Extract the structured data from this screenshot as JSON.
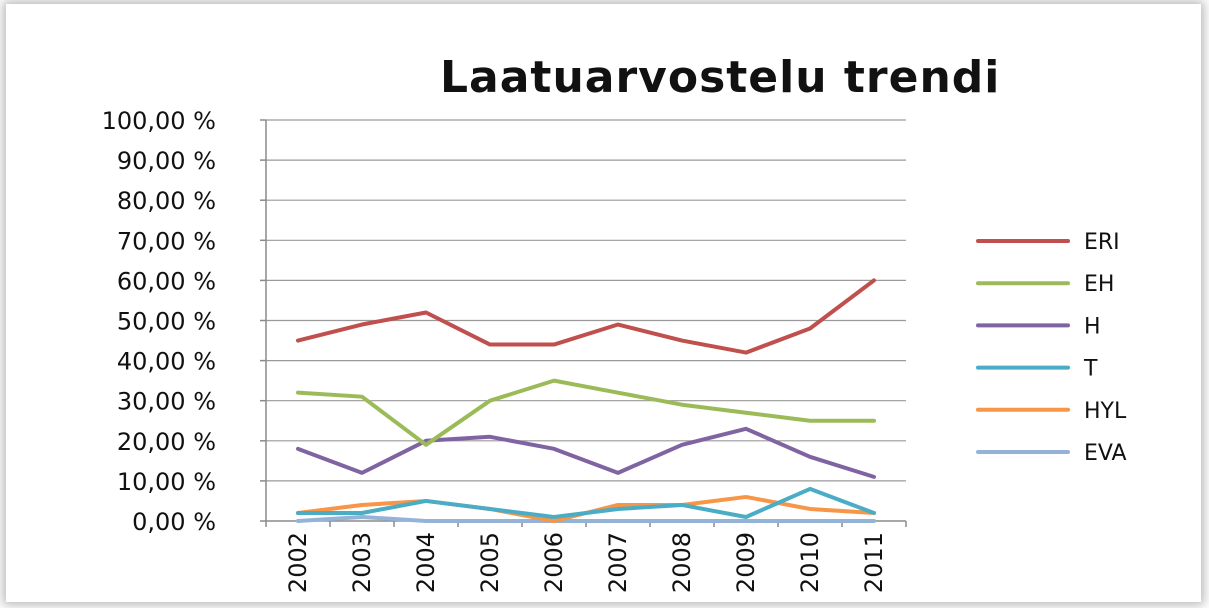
{
  "chart_data": {
    "type": "line",
    "title": "Laatuarvostelu trendi",
    "xlabel": "",
    "ylabel": "",
    "ylim": [
      0,
      100
    ],
    "y_ticks": [
      0,
      10,
      20,
      30,
      40,
      50,
      60,
      70,
      80,
      90,
      100
    ],
    "y_tick_labels": [
      "0,00 %",
      "10,00 %",
      "20,00 %",
      "30,00 %",
      "40,00 %",
      "50,00 %",
      "60,00 %",
      "70,00 %",
      "80,00 %",
      "90,00 %",
      "100,00 %"
    ],
    "categories": [
      "2002",
      "2003",
      "2004",
      "2005",
      "2006",
      "2007",
      "2008",
      "2009",
      "2010",
      "2011"
    ],
    "grid": "horizontal",
    "legend_position": "right",
    "series": [
      {
        "name": "ERI",
        "color": "#c0504d",
        "values": [
          45,
          49,
          52,
          44,
          44,
          49,
          45,
          42,
          48,
          60
        ]
      },
      {
        "name": "EH",
        "color": "#9bbb59",
        "values": [
          32,
          31,
          19,
          30,
          35,
          32,
          29,
          27,
          25,
          25
        ]
      },
      {
        "name": "H",
        "color": "#8064a2",
        "values": [
          18,
          12,
          20,
          21,
          18,
          12,
          19,
          23,
          16,
          11
        ]
      },
      {
        "name": "T",
        "color": "#4bacc6",
        "values": [
          2,
          2,
          5,
          3,
          1,
          3,
          4,
          1,
          8,
          2
        ]
      },
      {
        "name": "HYL",
        "color": "#f79646",
        "values": [
          2,
          4,
          5,
          3,
          0,
          4,
          4,
          6,
          3,
          2
        ]
      },
      {
        "name": "EVA",
        "color": "#95b3d7",
        "values": [
          0,
          1,
          0,
          0,
          0,
          0,
          0,
          0,
          0,
          0
        ]
      }
    ]
  }
}
